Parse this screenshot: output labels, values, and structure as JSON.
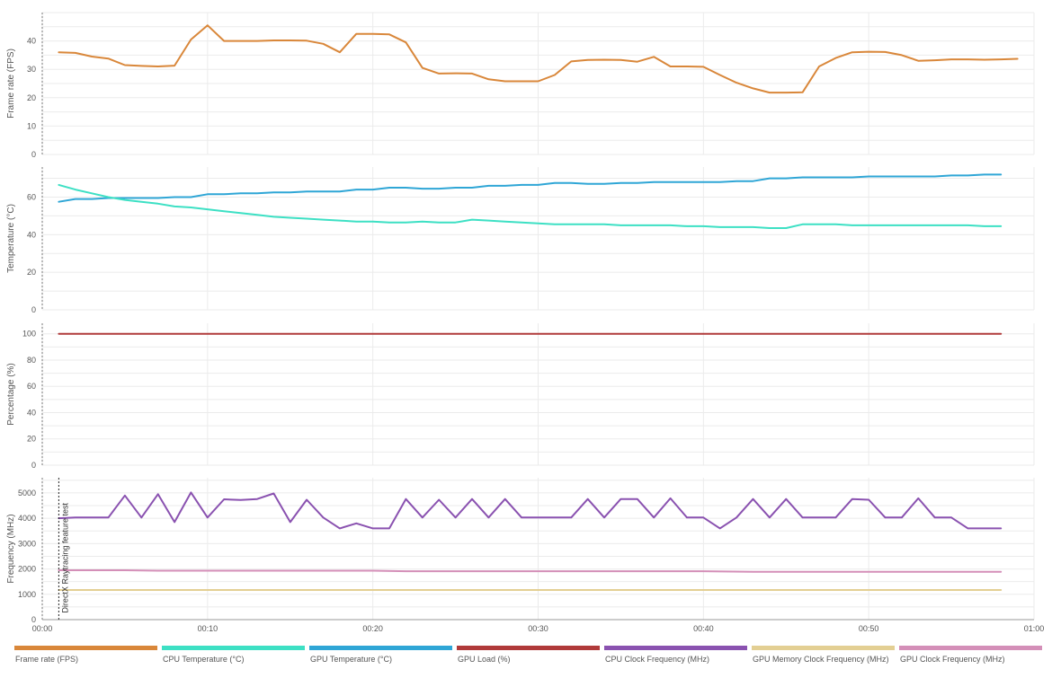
{
  "chart_data": {
    "type": "line",
    "x_unit": "mm:ss",
    "x_ticks": [
      "00:00",
      "00:10",
      "00:20",
      "00:30",
      "00:40",
      "00:50",
      "01:00"
    ],
    "xlim": [
      0,
      60
    ],
    "marker": {
      "x": 1,
      "label": "DirectX Raytracing feature test"
    },
    "legend_placement": "bottom",
    "grid": true,
    "panels": [
      {
        "id": "fps",
        "ylabel": "Frame rate (FPS)",
        "ylim": [
          0,
          50
        ],
        "yticks": [
          0,
          10,
          20,
          30,
          40
        ],
        "series": [
          {
            "name": "Frame rate (FPS)",
            "color": "#d9873a",
            "x": [
              1,
              2,
              3,
              4,
              5,
              6,
              7,
              8,
              9,
              10,
              11,
              12,
              13,
              14,
              15,
              16,
              17,
              18,
              19,
              20,
              21,
              22,
              23,
              24,
              25,
              26,
              27,
              28,
              29,
              30,
              31,
              32,
              33,
              34,
              35,
              36,
              37,
              38,
              39,
              40,
              41,
              42,
              43,
              44,
              45,
              46,
              47,
              48,
              49,
              50,
              51,
              52,
              53,
              54,
              55,
              56,
              57,
              58,
              59
            ],
            "y": [
              36,
              35.8,
              34.5,
              33.8,
              31.5,
              31.2,
              31,
              31.3,
              40.5,
              45.5,
              40,
              40,
              40,
              40.2,
              40.2,
              40.1,
              39,
              36,
              42.5,
              42.5,
              42.3,
              39.5,
              30.5,
              28.5,
              28.6,
              28.5,
              26.5,
              25.8,
              25.8,
              25.8,
              28,
              32.8,
              33.3,
              33.4,
              33.3,
              32.7,
              34.4,
              31,
              31,
              30.9,
              28,
              25.3,
              23.3,
              21.8,
              21.8,
              21.9,
              31,
              34,
              36,
              36.2,
              36.1,
              35,
              33,
              33.2,
              33.5,
              33.5,
              33.4,
              33.5,
              33.7
            ]
          }
        ]
      },
      {
        "id": "temp",
        "ylabel": "Temperature (°C)",
        "ylim": [
          0,
          76
        ],
        "yticks": [
          0,
          20,
          40,
          60
        ],
        "series": [
          {
            "name": "GPU Temperature (°C)",
            "color": "#2fa6d6",
            "x": [
              1,
              2,
              3,
              4,
              5,
              6,
              7,
              8,
              9,
              10,
              11,
              12,
              13,
              14,
              15,
              16,
              17,
              18,
              19,
              20,
              21,
              22,
              23,
              24,
              25,
              26,
              27,
              28,
              29,
              30,
              31,
              32,
              33,
              34,
              35,
              36,
              37,
              38,
              39,
              40,
              41,
              42,
              43,
              44,
              45,
              46,
              47,
              48,
              49,
              50,
              51,
              52,
              53,
              54,
              55,
              56,
              57,
              58
            ],
            "y": [
              57.5,
              59,
              59,
              59.5,
              59.5,
              59.5,
              59.5,
              60,
              60,
              61.5,
              61.5,
              62,
              62,
              62.5,
              62.5,
              63,
              63,
              63,
              64,
              64,
              65,
              65,
              64.5,
              64.5,
              65,
              65,
              66,
              66,
              66.5,
              66.5,
              67.5,
              67.5,
              67,
              67,
              67.5,
              67.5,
              68,
              68,
              68,
              68,
              68,
              68.5,
              68.5,
              70,
              70,
              70.5,
              70.5,
              70.5,
              70.5,
              71,
              71,
              71,
              71,
              71,
              71.5,
              71.5,
              72,
              72
            ]
          },
          {
            "name": "CPU Temperature (°C)",
            "color": "#3de0c4",
            "x": [
              1,
              2,
              3,
              4,
              5,
              6,
              7,
              8,
              9,
              10,
              11,
              12,
              13,
              14,
              15,
              16,
              17,
              18,
              19,
              20,
              21,
              22,
              23,
              24,
              25,
              26,
              27,
              28,
              29,
              30,
              31,
              32,
              33,
              34,
              35,
              36,
              37,
              38,
              39,
              40,
              41,
              42,
              43,
              44,
              45,
              46,
              47,
              48,
              49,
              50,
              51,
              52,
              53,
              54,
              55,
              56,
              57,
              58
            ],
            "y": [
              66.5,
              64,
              62,
              60,
              58.5,
              57.5,
              56.5,
              55,
              54.5,
              53.5,
              52.5,
              51.5,
              50.5,
              49.5,
              49,
              48.5,
              48,
              47.5,
              47,
              47,
              46.5,
              46.5,
              47,
              46.5,
              46.5,
              48,
              47.5,
              47,
              46.5,
              46,
              45.5,
              45.5,
              45.5,
              45.5,
              45,
              45,
              45,
              45,
              44.5,
              44.5,
              44,
              44,
              44,
              43.5,
              43.5,
              45.5,
              45.5,
              45.5,
              45,
              45,
              45,
              45,
              45,
              45,
              45,
              45,
              44.5,
              44.5
            ]
          }
        ]
      },
      {
        "id": "pct",
        "ylabel": "Percentage (%)",
        "ylim": [
          0,
          108
        ],
        "yticks": [
          0,
          20,
          40,
          60,
          80,
          100
        ],
        "series": [
          {
            "name": "GPU Load (%)",
            "color": "#b03a3a",
            "x": [
              1,
              58
            ],
            "y": [
              100,
              100
            ]
          }
        ]
      },
      {
        "id": "freq",
        "ylabel": "Frequency (MHz)",
        "ylim": [
          0,
          5600
        ],
        "yticks": [
          0,
          1000,
          2000,
          3000,
          4000,
          5000
        ],
        "series": [
          {
            "name": "CPU Clock Frequency (MHz)",
            "color": "#8a52b0",
            "x": [
              1,
              2,
              3,
              4,
              5,
              6,
              7,
              8,
              9,
              10,
              11,
              12,
              13,
              14,
              15,
              16,
              17,
              18,
              19,
              20,
              21,
              22,
              23,
              24,
              25,
              26,
              27,
              28,
              29,
              30,
              31,
              32,
              33,
              34,
              35,
              36,
              37,
              38,
              39,
              40,
              41,
              42,
              43,
              44,
              45,
              46,
              47,
              48,
              49,
              50,
              51,
              52,
              53,
              54,
              55,
              56,
              57,
              58
            ],
            "y": [
              4000,
              4030,
              4030,
              4030,
              4900,
              4030,
              4950,
              3850,
              5020,
              4030,
              4750,
              4720,
              4760,
              4980,
              3850,
              4730,
              4030,
              3600,
              3800,
              3600,
              3600,
              4760,
              4030,
              4730,
              4030,
              4760,
              4030,
              4760,
              4030,
              4030,
              4030,
              4030,
              4760,
              4030,
              4760,
              4760,
              4030,
              4790,
              4030,
              4030,
              3600,
              4030,
              4760,
              4030,
              4760,
              4030,
              4030,
              4030,
              4760,
              4730,
              4030,
              4030,
              4790,
              4030,
              4030,
              3600,
              3600,
              3600
            ]
          },
          {
            "name": "GPU Clock Frequency (MHz)",
            "color": "#d48fb8",
            "x": [
              1,
              5,
              7,
              20,
              22,
              40,
              43,
              58
            ],
            "y": [
              1950,
              1950,
              1930,
              1930,
              1910,
              1910,
              1890,
              1890
            ]
          },
          {
            "name": "GPU Memory Clock Frequency (MHz)",
            "color": "#e3cf93",
            "x": [
              1,
              58
            ],
            "y": [
              1170,
              1170
            ]
          }
        ]
      }
    ]
  },
  "legend": [
    {
      "label": "Frame rate (FPS)",
      "color": "#d9873a"
    },
    {
      "label": "CPU Temperature (°C)",
      "color": "#3de0c4"
    },
    {
      "label": "GPU Temperature (°C)",
      "color": "#2fa6d6"
    },
    {
      "label": "GPU Load (%)",
      "color": "#b03a3a"
    },
    {
      "label": "CPU Clock Frequency (MHz)",
      "color": "#8a52b0"
    },
    {
      "label": "GPU Memory Clock Frequency (MHz)",
      "color": "#e3cf93"
    },
    {
      "label": "GPU Clock Frequency (MHz)",
      "color": "#d48fb8"
    }
  ]
}
